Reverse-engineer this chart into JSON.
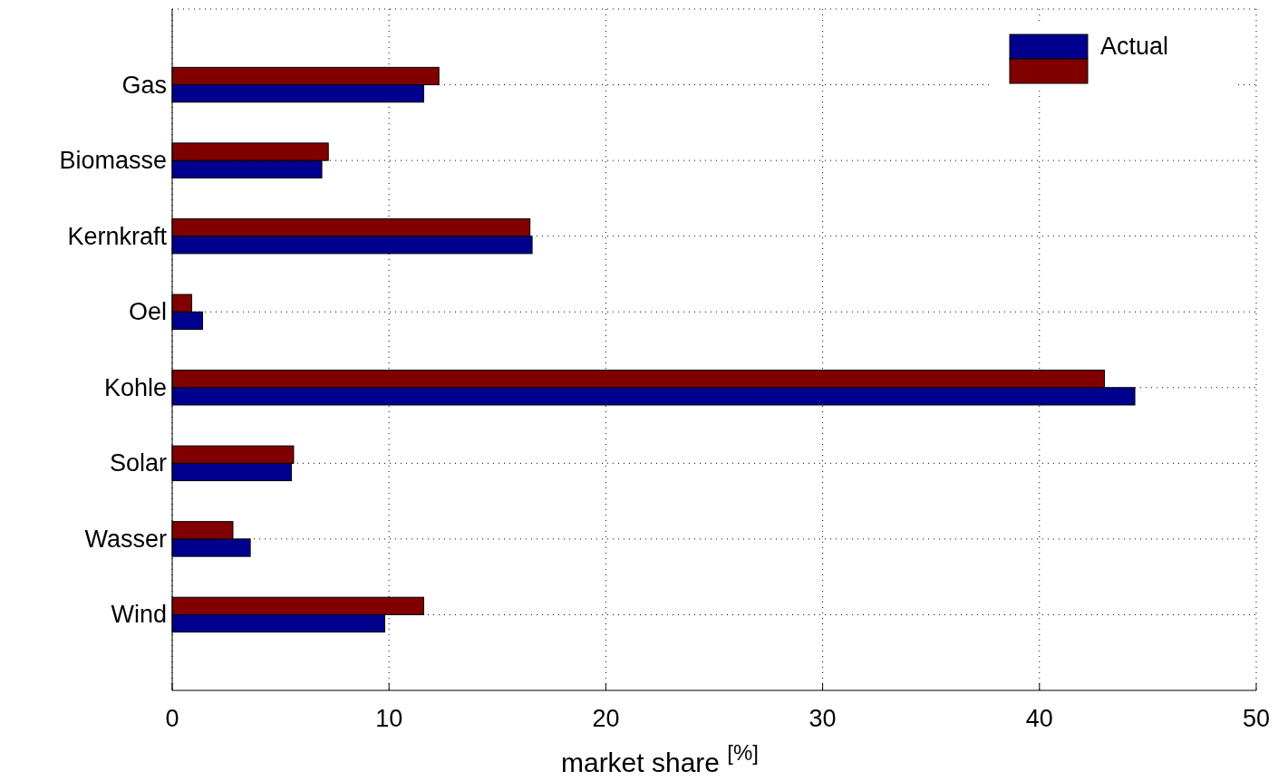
{
  "chart_data": {
    "type": "bar",
    "orientation": "horizontal",
    "categories": [
      "Gas",
      "Biomasse",
      "Kernkraft",
      "Oel",
      "Kohle",
      "Solar",
      "Wasser",
      "Wind"
    ],
    "series": [
      {
        "name": "Actual",
        "color": "#00008f",
        "values": [
          11.6,
          6.9,
          16.6,
          1.4,
          44.4,
          5.5,
          3.6,
          9.8
        ]
      },
      {
        "color": "#800000",
        "values": [
          12.3,
          7.2,
          16.5,
          0.9,
          43.0,
          5.6,
          2.8,
          11.6
        ]
      }
    ],
    "xlim": [
      0,
      50
    ],
    "xticks": [
      0,
      10,
      20,
      30,
      40,
      50
    ],
    "xlabel": "market share $^{[%]}$",
    "grid": true,
    "legend": "top right"
  }
}
